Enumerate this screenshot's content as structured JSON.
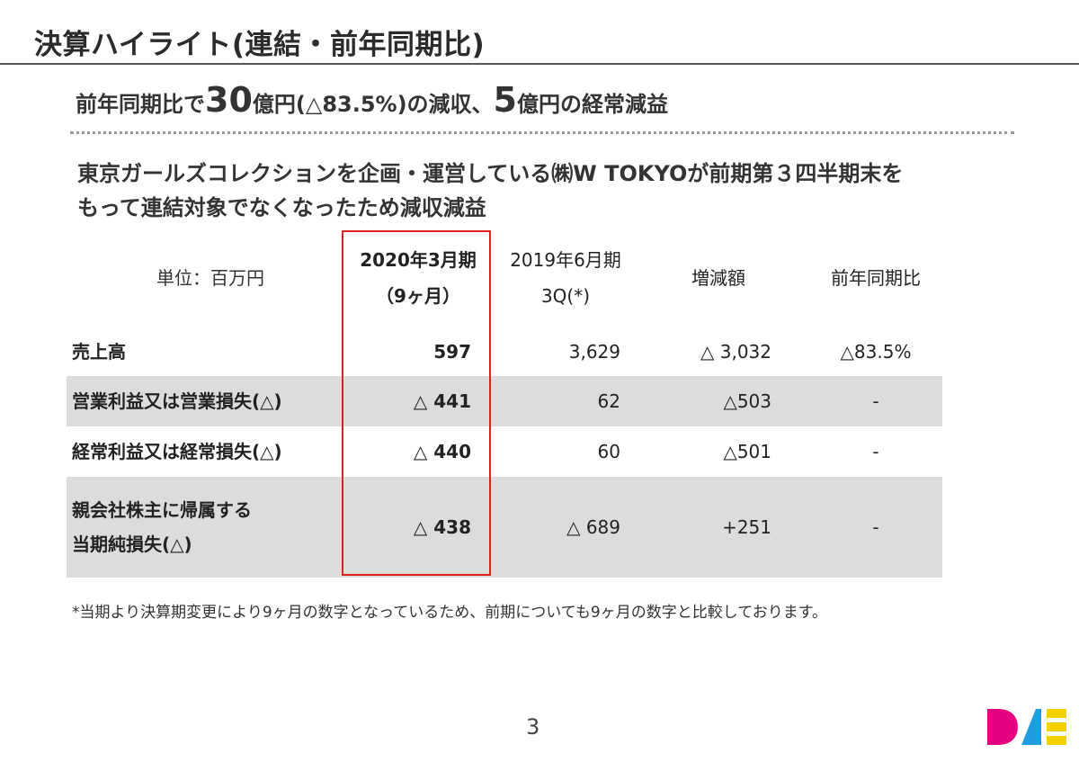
{
  "title": "決算ハイライト(連結・前年同期比)",
  "headline": {
    "p1": "前年同期比で",
    "n1": "30",
    "p2": "億円(△83.5%)の減収、",
    "n2": "5",
    "p3": "億円の経常減益"
  },
  "subhead": {
    "line1": "東京ガールズコレクションを企画・運営している㈱W TOKYOが前期第３四半期末を",
    "line2": "もって連結対象でなくなったため減収減益"
  },
  "table": {
    "unit_label": "単位：百万円",
    "columns": [
      {
        "line1": "2020年3月期",
        "line2": "（9ヶ月）"
      },
      {
        "line1": "2019年6月期",
        "line2": "3Q(*)"
      },
      {
        "line1": "増減額",
        "line2": ""
      },
      {
        "line1": "前年同期比",
        "line2": ""
      }
    ],
    "rows": [
      {
        "label1": "売上高",
        "label2": "",
        "v2020": "597",
        "v2019": "3,629",
        "diff": "△ 3,032",
        "yoy": "△83.5%"
      },
      {
        "label1": "営業利益又は営業損失(△)",
        "label2": "",
        "v2020": "△ 441",
        "v2019": "62",
        "diff": "△503",
        "yoy": "-"
      },
      {
        "label1": "経常利益又は経常損失(△)",
        "label2": "",
        "v2020": "△ 440",
        "v2019": "60",
        "diff": "△501",
        "yoy": "-"
      },
      {
        "label1": "親会社株主に帰属する",
        "label2": "当期純損失(△)",
        "v2020": "△ 438",
        "v2019": "△ 689",
        "diff": "+251",
        "yoy": "-"
      }
    ]
  },
  "footnote": "*当期より決算期変更により9ヶ月の数字となっているため、前期についても9ヶ月の数字と比較しております。",
  "page_number": "3",
  "colors": {
    "highlight_border": "#e02020",
    "row_shade": "#dcdcdc",
    "logo_magenta": "#e4007f",
    "logo_blue": "#1e9ee0",
    "logo_yellow": "#f5d000"
  }
}
